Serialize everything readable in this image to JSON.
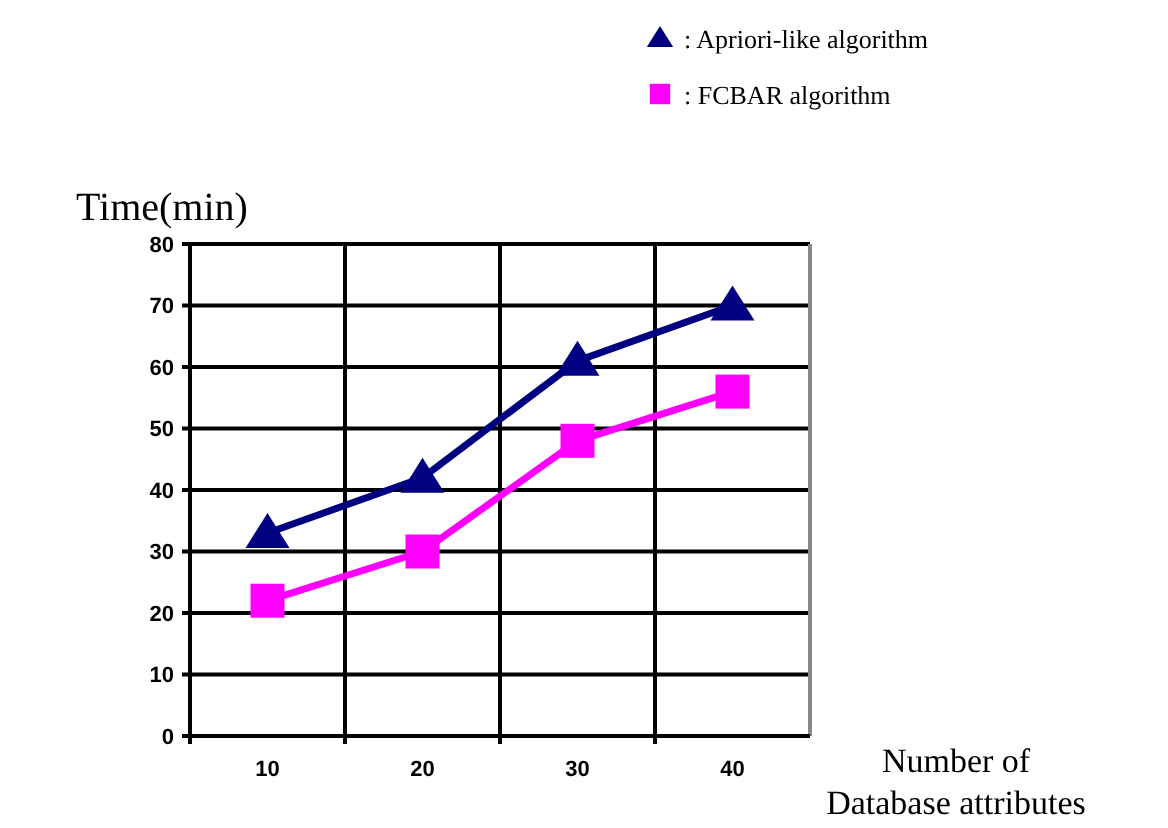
{
  "chart_data": {
    "type": "line",
    "xlabel": "Number of Database attributes",
    "ylabel": "Time(min)",
    "categories": [
      "10",
      "20",
      "30",
      "40"
    ],
    "series": [
      {
        "name": ": Apriori-like algorithm",
        "color": "#000080",
        "marker": "triangle",
        "values": [
          33,
          42,
          61,
          70
        ]
      },
      {
        "name": ": FCBAR algorithm",
        "color": "#ff00ff",
        "marker": "square",
        "values": [
          22,
          30,
          48,
          56
        ]
      }
    ],
    "ylim": [
      0,
      80
    ],
    "yticks": [
      0,
      10,
      20,
      30,
      40,
      50,
      60,
      70,
      80
    ],
    "grid": true,
    "legend": "top right"
  }
}
